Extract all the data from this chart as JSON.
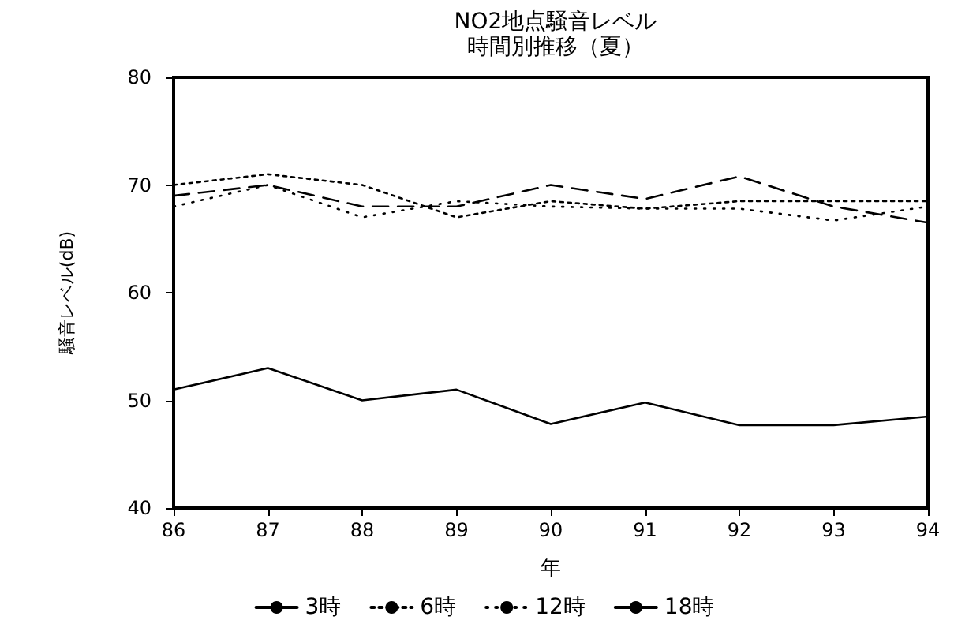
{
  "chart_data": {
    "type": "line",
    "title": "NO2地点騒音レベル",
    "subtitle": "時間別推移（夏）",
    "xlabel": "年",
    "ylabel": "騒音レベル(dB)",
    "categories": [
      "86",
      "87",
      "88",
      "89",
      "90",
      "91",
      "92",
      "93",
      "94"
    ],
    "ylim": [
      40,
      80
    ],
    "yticks": [
      40,
      50,
      60,
      70,
      80
    ],
    "grid": false,
    "legend": "bottom",
    "marker": "none",
    "series": [
      {
        "name": "3時",
        "color": "#000000",
        "line_style": "solid",
        "values": [
          51,
          53,
          50,
          51,
          47.8,
          49.8,
          47.7,
          47.7,
          48.5
        ]
      },
      {
        "name": "6時",
        "color": "#000000",
        "line_style": "dotted",
        "values": [
          70,
          71,
          70,
          67,
          68.5,
          67.8,
          68.5,
          68.5,
          68.5
        ]
      },
      {
        "name": "12時",
        "color": "#000000",
        "line_style": "dotted",
        "values": [
          68,
          70,
          67,
          68.5,
          68,
          67.8,
          67.8,
          66.7,
          68
        ]
      },
      {
        "name": "18時",
        "color": "#000000",
        "line_style": "dashed",
        "values": [
          69,
          70,
          68,
          68,
          70,
          68.7,
          70.8,
          68,
          66.5
        ]
      }
    ]
  }
}
